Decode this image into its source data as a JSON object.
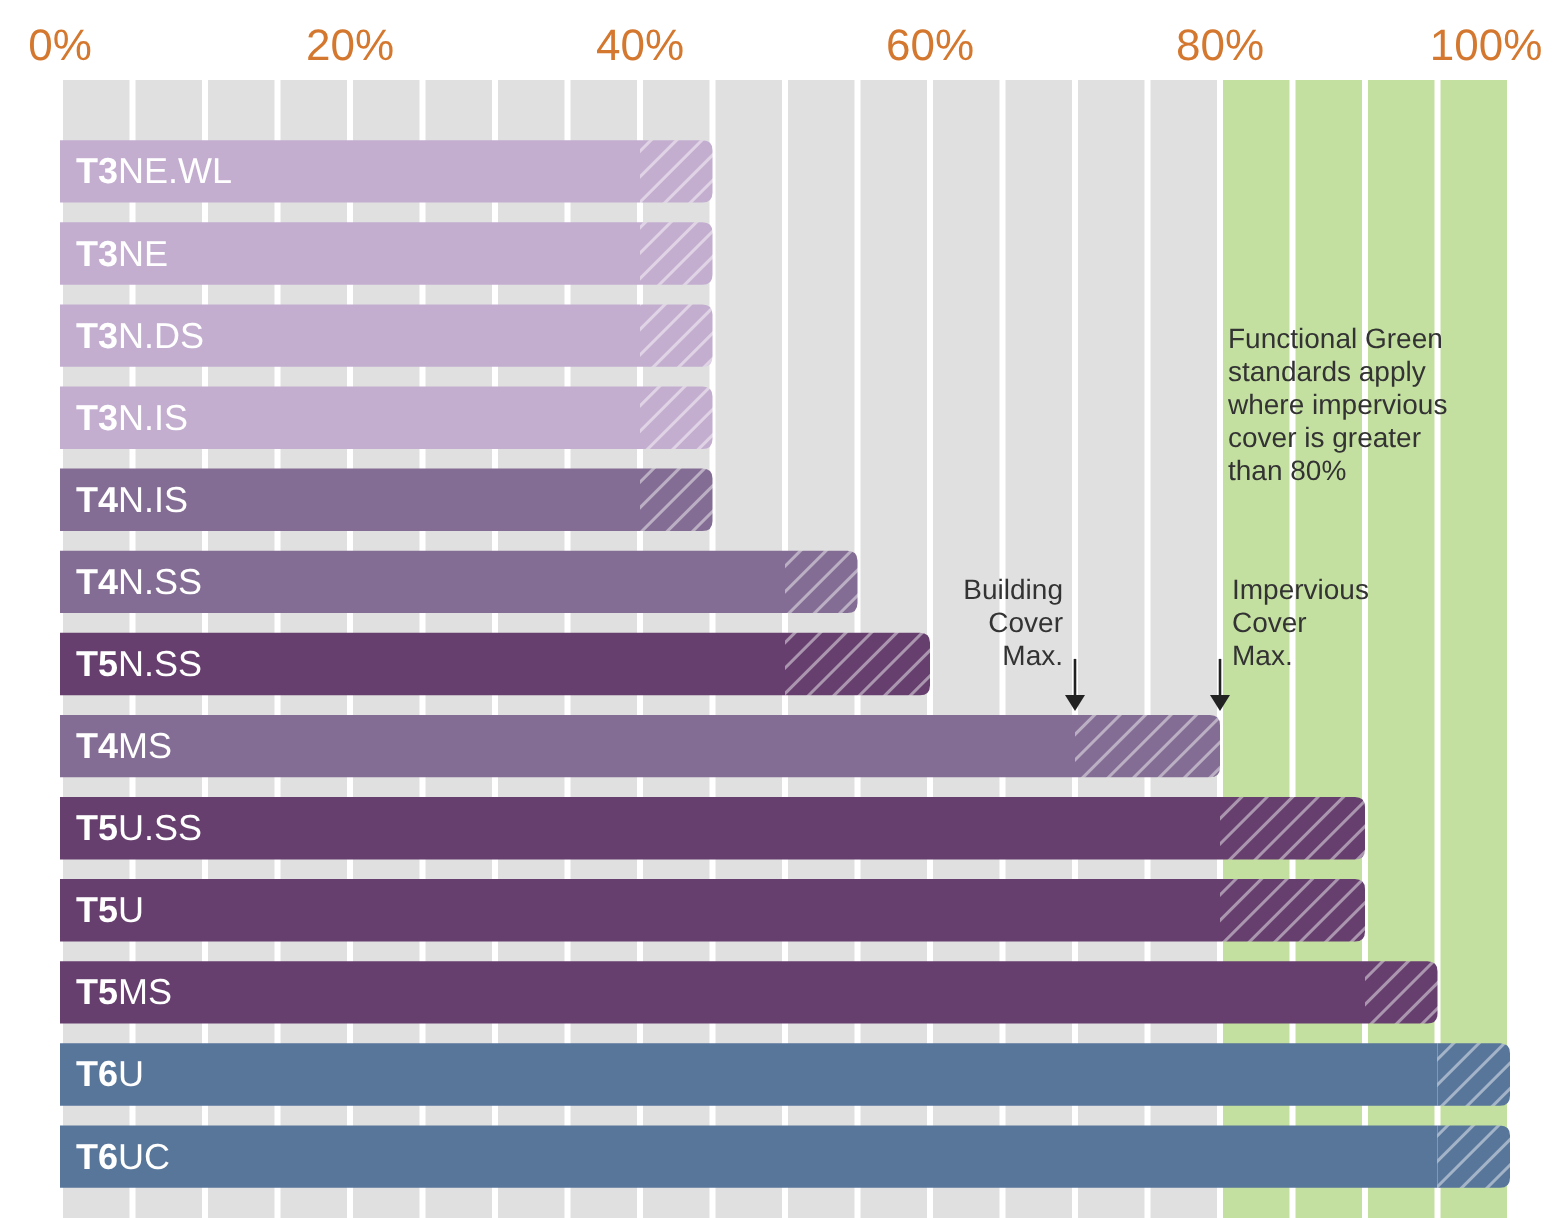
{
  "chart_data": {
    "type": "bar",
    "orientation": "horizontal",
    "stacked": true,
    "categories": [
      "T3NE.WL",
      "T3NE",
      "T3N.DS",
      "T3N.IS",
      "T4N.IS",
      "T4N.SS",
      "T5N.SS",
      "T4MS",
      "T5U.SS",
      "T5U",
      "T5MS",
      "T6U",
      "T6UC"
    ],
    "series": [
      {
        "colors": [
          "#c4aed0",
          "#c4aed0",
          "#c4aed0",
          "#c4aed0",
          "#846d94",
          "#846d94",
          "#663f6e",
          "#846d94",
          "#663f6e",
          "#663f6e",
          "#663f6e",
          "#58759a",
          "#58759a"
        ],
        "values": [
          40,
          40,
          40,
          40,
          40,
          50,
          50,
          70,
          80,
          80,
          90,
          95,
          95
        ]
      },
      {
        "colors": [
          "#c4aed0",
          "#c4aed0",
          "#c4aed0",
          "#c4aed0",
          "#846d94",
          "#846d94",
          "#663f6e",
          "#846d94",
          "#663f6e",
          "#663f6e",
          "#663f6e",
          "#58759a",
          "#58759a"
        ],
        "values": [
          5,
          5,
          5,
          5,
          5,
          5,
          10,
          10,
          10,
          10,
          5,
          5,
          5
        ]
      }
    ],
    "xlim": [
      0,
      100
    ],
    "xticks": [
      {
        "value": 0,
        "label": "0%"
      },
      {
        "value": 5,
        "label": null
      },
      {
        "value": 10,
        "label": null
      },
      {
        "value": 15,
        "label": null
      },
      {
        "value": 20,
        "label": "20%"
      },
      {
        "value": 25,
        "label": null
      },
      {
        "value": 30,
        "label": null
      },
      {
        "value": 35,
        "label": null
      },
      {
        "value": 40,
        "label": "40%"
      },
      {
        "value": 45,
        "label": null
      },
      {
        "value": 50,
        "label": null
      },
      {
        "value": 55,
        "label": null
      },
      {
        "value": 60,
        "label": "60%"
      },
      {
        "value": 65,
        "label": null
      },
      {
        "value": 70,
        "label": null
      },
      {
        "value": 75,
        "label": null
      },
      {
        "value": 80,
        "label": "80%"
      },
      {
        "value": 85,
        "label": null
      },
      {
        "value": 90,
        "label": null
      },
      {
        "value": 95,
        "label": null
      },
      {
        "value": 100,
        "label": "100%"
      }
    ],
    "grid": "x",
    "bands": [
      {
        "axis": "x",
        "from": 80,
        "to": 100,
        "color": "#c4e0a0",
        "label": "Functional Green standards apply where impervious cover is greater than 80%"
      }
    ],
    "annotations": [
      {
        "text": "Building Cover Max.",
        "x": 70,
        "y": "T4MS"
      },
      {
        "text": "Impervious Cover Max.",
        "x": 80,
        "y": "T4MS"
      }
    ]
  }
}
